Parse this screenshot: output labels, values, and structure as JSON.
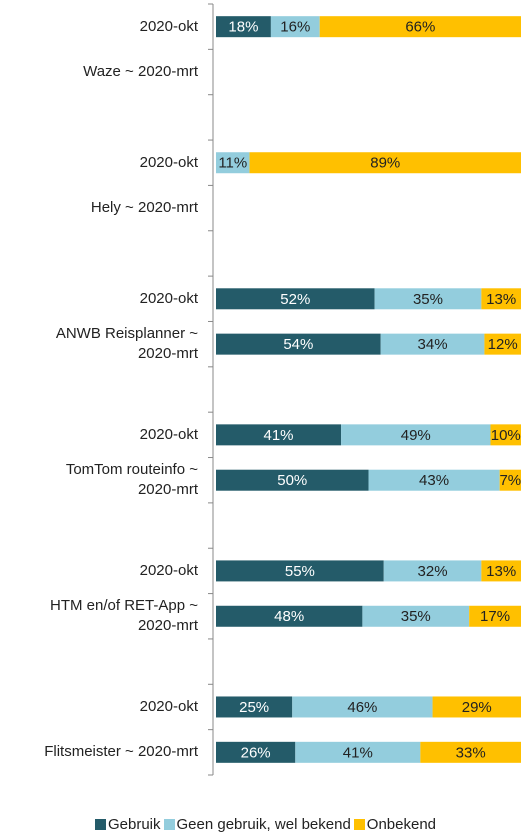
{
  "chart_data": {
    "type": "stacked-bar-horizontal",
    "categories": [
      "2020-okt",
      "Waze ~ 2020-mrt",
      null,
      "2020-okt",
      "Hely ~ 2020-mrt",
      null,
      "2020-okt",
      "ANWB Reisplanner ~ 2020-mrt",
      null,
      "2020-okt",
      "TomTom routeinfo ~ 2020-mrt",
      null,
      "2020-okt",
      "HTM en/of RET-App ~ 2020-mrt",
      null,
      "2020-okt",
      "Flitsmeister ~ 2020-mrt"
    ],
    "series": [
      {
        "name": "Gebruik",
        "color": "#245b69",
        "values": [
          18,
          null,
          null,
          null,
          null,
          null,
          52,
          54,
          null,
          41,
          50,
          null,
          55,
          48,
          null,
          25,
          26
        ],
        "value_labels": [
          "18%",
          null,
          null,
          null,
          null,
          null,
          "52%",
          "54%",
          null,
          "41%",
          "50%",
          null,
          "55%",
          "48%",
          null,
          "25%",
          "26%"
        ]
      },
      {
        "name": "Geen gebruik, wel bekend",
        "color": "#93cddd",
        "values": [
          16,
          null,
          null,
          11,
          null,
          null,
          35,
          34,
          null,
          49,
          43,
          null,
          32,
          35,
          null,
          46,
          41
        ],
        "value_labels": [
          "16%",
          null,
          null,
          "11%",
          null,
          null,
          "35%",
          "34%",
          null,
          "49%",
          "43%",
          null,
          "32%",
          "35%",
          null,
          "46%",
          "41%"
        ]
      },
      {
        "name": "Onbekend",
        "color": "#ffc000",
        "values": [
          66,
          null,
          null,
          89,
          null,
          null,
          13,
          12,
          null,
          10,
          7,
          null,
          13,
          17,
          null,
          29,
          33
        ],
        "value_labels": [
          "66%",
          null,
          null,
          "89%",
          null,
          null,
          "13%",
          "12%",
          null,
          "10%",
          "7%",
          null,
          "13%",
          "17%",
          null,
          "29%",
          "33%"
        ]
      }
    ],
    "xlim": [
      0,
      100
    ]
  }
}
